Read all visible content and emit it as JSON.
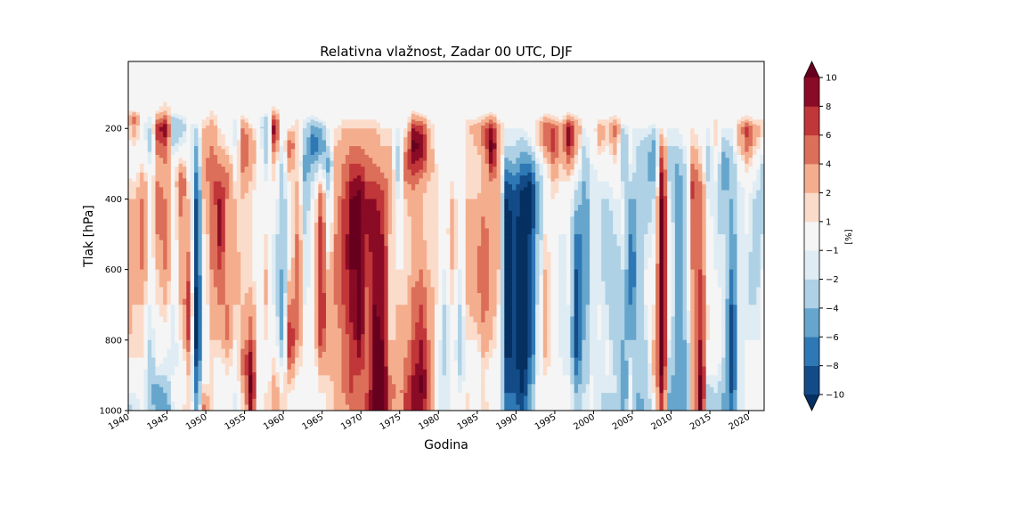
{
  "chart_data": {
    "type": "heatmap",
    "plot_kind": "filled contour (Hovmöller: year vs. pressure)",
    "title": "Relativna vlažnost, Zadar 00 UTC, DJF",
    "xlabel": "Godina",
    "ylabel": "Tlak [hPa]",
    "colorbar_label": "[%]",
    "xlim": [
      1940,
      2022
    ],
    "ylim": [
      1000,
      10
    ],
    "y_inverted": true,
    "xticks": [
      1940,
      1945,
      1950,
      1955,
      1960,
      1965,
      1970,
      1975,
      1980,
      1985,
      1990,
      1995,
      2000,
      2005,
      2010,
      2015,
      2020
    ],
    "xtick_labels": [
      "1940",
      "1945",
      "1950",
      "1955",
      "1960",
      "1965",
      "1970",
      "1975",
      "1980",
      "1985",
      "1990",
      "1995",
      "2000",
      "2005",
      "2010",
      "2015",
      "2020"
    ],
    "yticks": [
      200,
      400,
      600,
      800,
      1000
    ],
    "ytick_labels": [
      "200",
      "400",
      "600",
      "800",
      "1000"
    ],
    "levels": [
      -10,
      -8,
      -6,
      -4,
      -2,
      -1,
      1,
      2,
      4,
      6,
      8,
      10
    ],
    "level_labels": [
      "−10",
      "−8",
      "−6",
      "−4",
      "−2",
      "−1",
      "1",
      "2",
      "4",
      "6",
      "8",
      "10"
    ],
    "colorbar_extend": "both",
    "colors": {
      "under": "#053061",
      "bins": [
        "#134b87",
        "#2e78b5",
        "#66a6cd",
        "#aed1e5",
        "#dfecf4",
        "#f5f5f5",
        "#fbdccb",
        "#f4ae8e",
        "#dc6f59",
        "#c13639",
        "#8a0b25"
      ],
      "over": "#67001f"
    },
    "pressure_levels": [
      10,
      125,
      150,
      175,
      200,
      250,
      300,
      350,
      400,
      500,
      600,
      700,
      800,
      850,
      900,
      950,
      1000
    ],
    "anomaly_by_year": {
      "1940": [
        0,
        0,
        1,
        1.5,
        1,
        0.5,
        0,
        1.5,
        2,
        3,
        4,
        3,
        2,
        1,
        0,
        -1,
        -3
      ],
      "1941": [
        0,
        0,
        1,
        5,
        3,
        1,
        0,
        1,
        2,
        2.5,
        3,
        2,
        1.5,
        1,
        0,
        -1,
        -2
      ],
      "1942": [
        0,
        0,
        0,
        -0.5,
        -1,
        0,
        1,
        3,
        4,
        5,
        4,
        2,
        1,
        1,
        0,
        0,
        -1
      ],
      "1943": [
        0,
        0,
        0,
        -1.5,
        -2,
        -2.5,
        -1,
        0,
        0,
        0.5,
        0,
        -1,
        -2,
        -3,
        -4,
        -4,
        -3
      ],
      "1944": [
        0.5,
        0.5,
        1,
        4,
        8,
        5,
        3,
        4,
        5,
        4,
        2,
        1,
        0,
        0,
        -2,
        -6,
        -5
      ],
      "1945": [
        0.5,
        1,
        2,
        6,
        10,
        6,
        4,
        3,
        4,
        5,
        4,
        2,
        0,
        -1,
        -2,
        -4,
        -6
      ],
      "1946": [
        0,
        0,
        0,
        -3,
        -4,
        -2,
        0,
        0,
        0,
        0,
        0,
        -1,
        -2,
        -2,
        -1,
        0,
        -2
      ],
      "1947": [
        0,
        0,
        0,
        -2,
        -3,
        -1,
        2,
        6,
        5,
        3,
        2,
        2,
        1,
        0,
        0,
        0,
        1
      ],
      "1948": [
        0,
        0,
        0,
        -1,
        -1,
        0,
        0,
        1,
        2,
        3,
        5,
        8,
        6,
        3,
        2,
        1,
        2
      ],
      "1949": [
        0,
        0,
        0,
        0,
        -2,
        -4,
        -5,
        -7,
        -8,
        -9,
        -9,
        -11,
        -11,
        -9,
        -7,
        -6,
        -5
      ],
      "1950": [
        0,
        0,
        0,
        1,
        2,
        3,
        4,
        3,
        2,
        1,
        0,
        0,
        -1,
        -1,
        0,
        2,
        5
      ],
      "1951": [
        0,
        0,
        1,
        2,
        3,
        4,
        5,
        6,
        5,
        4,
        4,
        3,
        2,
        1,
        1,
        1,
        1
      ],
      "1952": [
        0,
        0,
        0,
        0,
        1,
        2,
        4,
        6,
        8,
        9,
        6,
        4,
        2,
        1,
        0,
        0,
        0
      ],
      "1953": [
        0,
        0,
        0,
        0,
        0,
        1,
        3,
        5,
        4,
        3,
        3,
        4,
        4,
        2,
        1,
        0,
        0
      ],
      "1954": [
        0,
        0,
        0,
        -1,
        -2,
        -1,
        0,
        1,
        2,
        2,
        3,
        2,
        1,
        0,
        0,
        -1,
        -2
      ],
      "1955": [
        0,
        0,
        0,
        2,
        4,
        6,
        5,
        3,
        2,
        1,
        1,
        2,
        3,
        5,
        4,
        2,
        1
      ],
      "1956": [
        0,
        0,
        0,
        0,
        2,
        4,
        3,
        2,
        1,
        1,
        1,
        3,
        6,
        9,
        10,
        10,
        8
      ],
      "1957": [
        0,
        0,
        0,
        -1,
        -1,
        0,
        0,
        0,
        0,
        0,
        0,
        0,
        0,
        -1,
        -1,
        0,
        0
      ],
      "1958": [
        0,
        0,
        0,
        -3,
        -4,
        -3,
        -2,
        -1,
        0,
        1,
        2,
        2,
        1,
        0,
        0,
        1,
        2
      ],
      "1959": [
        0,
        0,
        2,
        6,
        9,
        5,
        2,
        1,
        0,
        -1,
        -2,
        -1,
        0,
        1,
        2,
        3,
        2
      ],
      "1960": [
        0,
        0,
        0,
        0,
        0,
        -1,
        -2,
        -3,
        -3,
        -4,
        -4,
        -5,
        -4,
        -2,
        0,
        1,
        2
      ],
      "1961": [
        0,
        0,
        0,
        0,
        1,
        6,
        3,
        1,
        0,
        0,
        1,
        4,
        8,
        6,
        3,
        1,
        0
      ],
      "1962": [
        0,
        0,
        0,
        1,
        2,
        1,
        1,
        2,
        3,
        4,
        5,
        5,
        4,
        2,
        1,
        0,
        0
      ],
      "1963": [
        0,
        0,
        0,
        -1,
        -2,
        -3,
        -5,
        -4,
        -3,
        -2,
        -2,
        -1,
        -1,
        0,
        0,
        0,
        0
      ],
      "1964": [
        0,
        0,
        0,
        -2,
        -5,
        -8,
        -4,
        -2,
        -1,
        0,
        0,
        0,
        0,
        0,
        0,
        0,
        -1
      ],
      "1965": [
        0,
        0,
        0,
        -1,
        -4,
        -6,
        -2,
        1,
        5,
        7,
        6,
        8,
        7,
        4,
        2,
        1,
        0
      ],
      "1966": [
        0,
        0,
        0,
        0,
        -1,
        -2,
        -5,
        -3,
        -1,
        0,
        2,
        4,
        3,
        2,
        2,
        1,
        1
      ],
      "1967": [
        0,
        0,
        0,
        0,
        1,
        2,
        3,
        3,
        3,
        4,
        4,
        4,
        3,
        3,
        3,
        2,
        2
      ],
      "1968": [
        0,
        0,
        0,
        1,
        2,
        3,
        4,
        5,
        6,
        7,
        7,
        6,
        5,
        5,
        5,
        4,
        3
      ],
      "1969": [
        0,
        0,
        0,
        1,
        2,
        4,
        6,
        8,
        10,
        10,
        10,
        9,
        7,
        6,
        6,
        6,
        5
      ],
      "1970": [
        0,
        0,
        0,
        1,
        2,
        4,
        6,
        9,
        11,
        11,
        10,
        11,
        10,
        8,
        6,
        5,
        4
      ],
      "1971": [
        0,
        0,
        0,
        1,
        2,
        3,
        5,
        6,
        8,
        8,
        7,
        5,
        4,
        4,
        5,
        6,
        6
      ],
      "1972": [
        0,
        0,
        0,
        1,
        2,
        3,
        4,
        6,
        8,
        9,
        9,
        10,
        11,
        11,
        12,
        12,
        12
      ],
      "1973": [
        0,
        0,
        0,
        0,
        1,
        2,
        3,
        5,
        7,
        8,
        9,
        9,
        10,
        10,
        11,
        11,
        11
      ],
      "1974": [
        0,
        0,
        0,
        0,
        1,
        2,
        3,
        3,
        3,
        2,
        1,
        1,
        2,
        3,
        4,
        5,
        4
      ],
      "1975": [
        0,
        0,
        0,
        0,
        -1,
        -2,
        -3,
        -2,
        -1,
        0,
        1,
        2,
        2,
        2,
        3,
        3,
        2
      ],
      "1976": [
        0,
        0,
        0,
        0,
        1,
        3,
        6,
        4,
        2,
        1,
        1,
        2,
        3,
        4,
        5,
        6,
        6
      ],
      "1977": [
        0,
        0,
        1,
        4,
        8,
        11,
        8,
        5,
        3,
        3,
        3,
        5,
        6,
        7,
        8,
        9,
        9
      ],
      "1978": [
        0,
        0,
        0,
        3,
        7,
        10,
        7,
        3,
        2,
        2,
        4,
        6,
        8,
        9,
        10,
        10,
        9
      ],
      "1979": [
        0,
        0,
        0,
        1,
        2,
        3,
        3,
        2,
        1,
        1,
        2,
        3,
        4,
        4,
        5,
        5,
        4
      ],
      "1980": [
        0,
        0,
        0,
        0,
        0,
        0,
        1,
        1,
        1,
        1,
        1,
        1,
        0,
        0,
        -1,
        -1,
        -1
      ],
      "1981": [
        0,
        0,
        0,
        0,
        -1,
        -1,
        -1,
        0,
        0,
        0,
        -1,
        -2,
        -3,
        -3,
        -2,
        -2,
        -1
      ],
      "1982": [
        0,
        0,
        0,
        0,
        -1,
        -1,
        0,
        1,
        2,
        3,
        2,
        1,
        0,
        0,
        0,
        0,
        -1
      ],
      "1983": [
        0,
        0,
        0,
        0,
        0,
        0,
        0,
        0,
        -1,
        -1,
        -1,
        -2,
        -3,
        -3,
        -2,
        -1,
        0
      ],
      "1984": [
        0,
        0,
        0,
        1,
        2,
        1,
        1,
        1,
        2,
        3,
        3,
        2,
        1,
        0,
        0,
        1,
        1
      ],
      "1985": [
        0,
        0,
        0,
        1,
        3,
        2,
        1,
        1,
        2,
        3,
        4,
        3,
        1,
        0,
        -1,
        -1,
        0
      ],
      "1986": [
        0,
        0,
        0,
        2,
        5,
        4,
        2,
        2,
        3,
        5,
        6,
        5,
        3,
        2,
        1,
        1,
        2
      ],
      "1987": [
        0,
        0,
        0,
        4,
        8,
        11,
        8,
        4,
        3,
        3,
        4,
        3,
        2,
        1,
        0,
        0,
        0
      ],
      "1988": [
        0,
        0,
        0,
        1,
        3,
        4,
        3,
        2,
        2,
        2,
        2,
        1,
        0,
        0,
        -1,
        -1,
        -1
      ],
      "1989": [
        0,
        0,
        0,
        0,
        -1,
        -2,
        -5,
        -8,
        -10,
        -11,
        -11,
        -11,
        -11,
        -10,
        -9,
        -8,
        -6
      ],
      "1990": [
        0,
        0,
        0,
        0,
        -1,
        -2,
        -4,
        -7,
        -9,
        -10,
        -10,
        -10,
        -10,
        -10,
        -9,
        -8,
        -7
      ],
      "1991": [
        0,
        0,
        0,
        0,
        -1,
        -3,
        -6,
        -9,
        -11,
        -11,
        -12,
        -12,
        -12,
        -12,
        -11,
        -10,
        -9
      ],
      "1992": [
        0,
        0,
        0,
        1,
        0,
        -2,
        -6,
        -10,
        -11,
        -10,
        -9,
        -9,
        -9,
        -8,
        -7,
        -5,
        -4
      ],
      "1993": [
        0,
        0,
        0,
        1,
        2,
        1,
        -2,
        -4,
        -5,
        -4,
        -3,
        -2,
        -2,
        -2,
        -1,
        0,
        1
      ],
      "1994": [
        0,
        0,
        0,
        3,
        6,
        4,
        1,
        0,
        0,
        1,
        2,
        3,
        3,
        2,
        1,
        0,
        1
      ],
      "1995": [
        0,
        0,
        0,
        2,
        6,
        7,
        4,
        2,
        1,
        0,
        0,
        0,
        0,
        0,
        0,
        0,
        0
      ],
      "1996": [
        0,
        0,
        0,
        1,
        4,
        3,
        2,
        1,
        0,
        -1,
        -2,
        -2,
        -2,
        -1,
        -1,
        0,
        0
      ],
      "1997": [
        0,
        0,
        0,
        4,
        9,
        8,
        4,
        1,
        0,
        -1,
        -1,
        -1,
        -2,
        -2,
        -1,
        0,
        -1
      ],
      "1998": [
        0,
        0,
        0,
        2,
        4,
        3,
        1,
        -1,
        -3,
        -6,
        -8,
        -9,
        -9,
        -8,
        -6,
        -4,
        -3
      ],
      "1999": [
        0,
        0,
        0,
        0,
        -1,
        -2,
        -3,
        -4,
        -5,
        -6,
        -6,
        -5,
        -4,
        -3,
        -3,
        -2,
        -2
      ],
      "2000": [
        0,
        0,
        0,
        0,
        0,
        0,
        -1,
        -2,
        -2,
        -2,
        -2,
        -2,
        -2,
        -2,
        -1,
        -1,
        -1
      ],
      "2001": [
        0,
        0,
        0,
        1,
        3,
        2,
        0,
        -1,
        -2,
        -2,
        -2,
        -1,
        -1,
        -2,
        -2,
        -2,
        -2
      ],
      "2002": [
        0,
        0,
        0,
        1,
        2,
        1,
        0,
        -1,
        -2,
        -3,
        -3,
        -2,
        -1,
        0,
        -1,
        -2,
        -3
      ],
      "2003": [
        0,
        0,
        0,
        2,
        5,
        3,
        1,
        0,
        -1,
        -2,
        -3,
        -4,
        -4,
        -3,
        -2,
        -2,
        -3
      ],
      "2004": [
        0,
        0,
        0,
        0,
        -2,
        -4,
        -3,
        -2,
        -1,
        -1,
        -2,
        -3,
        -4,
        -5,
        -6,
        -6,
        -5
      ],
      "2005": [
        0,
        0,
        0,
        0,
        -1,
        -1,
        -1,
        -2,
        -4,
        -6,
        -8,
        -6,
        -4,
        -2,
        -1,
        -1,
        -1
      ],
      "2006": [
        0,
        0,
        0,
        0,
        -1,
        -2,
        -3,
        -3,
        -4,
        -4,
        -4,
        -4,
        -4,
        -4,
        -4,
        -4,
        -5
      ],
      "2007": [
        0,
        0,
        0,
        0,
        -1,
        -3,
        -4,
        -4,
        -3,
        -2,
        -1,
        -1,
        -2,
        -3,
        -3,
        -3,
        -4
      ],
      "2008": [
        0,
        0,
        0,
        0,
        -2,
        -5,
        -6,
        -4,
        -2,
        -1,
        0,
        1,
        2,
        3,
        2,
        1,
        0
      ],
      "2009": [
        0,
        0,
        0,
        0,
        1,
        4,
        7,
        9,
        10,
        11,
        12,
        12,
        12,
        11,
        10,
        8,
        6
      ],
      "2010": [
        0,
        0,
        0,
        0,
        -1,
        -2,
        -3,
        -2,
        -1,
        0,
        0,
        0,
        -1,
        -2,
        -3,
        -4,
        -5
      ],
      "2011": [
        0,
        0,
        0,
        0,
        -1,
        -2,
        -4,
        -5,
        -5,
        -5,
        -5,
        -5,
        -5,
        -5,
        -6,
        -6,
        -6
      ],
      "2012": [
        0,
        0,
        0,
        0,
        0,
        -1,
        -2,
        -3,
        -3,
        -3,
        -3,
        -3,
        -4,
        -5,
        -6,
        -6,
        -6
      ],
      "2013": [
        0,
        0,
        0,
        0,
        1,
        2,
        4,
        6,
        6,
        5,
        4,
        3,
        2,
        2,
        2,
        2,
        2
      ],
      "2014": [
        0,
        0,
        0,
        0,
        0,
        1,
        2,
        4,
        5,
        5,
        6,
        7,
        8,
        9,
        10,
        11,
        11
      ],
      "2015": [
        0,
        0,
        0,
        0,
        -1,
        -2,
        -3,
        -2,
        -1,
        0,
        0,
        1,
        1,
        0,
        -1,
        -3,
        -4
      ],
      "2016": [
        0,
        0,
        0,
        1,
        2,
        1,
        0,
        -1,
        -2,
        -2,
        -1,
        0,
        1,
        0,
        -1,
        -2,
        -3
      ],
      "2017": [
        0,
        0,
        0,
        0,
        -1,
        -3,
        -6,
        -5,
        -3,
        -2,
        -2,
        -2,
        -2,
        -2,
        -3,
        -4,
        -5
      ],
      "2018": [
        0,
        0,
        0,
        0,
        -1,
        -2,
        -3,
        -4,
        -4,
        -5,
        -6,
        -8,
        -10,
        -10,
        -9,
        -8,
        -7
      ],
      "2019": [
        0,
        0,
        0,
        1,
        3,
        2,
        0,
        -1,
        -2,
        -2,
        -2,
        -2,
        -2,
        -2,
        -2,
        -2,
        -2
      ],
      "2020": [
        0,
        0,
        0,
        2,
        7,
        5,
        2,
        0,
        -1,
        -1,
        -2,
        -2,
        -1,
        -1,
        -1,
        -1,
        -1
      ],
      "2021": [
        0,
        0,
        0,
        1,
        3,
        2,
        0,
        -1,
        -2,
        -3,
        -3,
        -2,
        -1,
        0,
        0,
        -1,
        -1
      ],
      "2022": [
        0,
        0,
        0,
        1,
        2,
        0,
        -2,
        -3,
        -3,
        -2,
        -1,
        -1,
        -1,
        -1,
        -1,
        -1,
        -1
      ]
    }
  }
}
